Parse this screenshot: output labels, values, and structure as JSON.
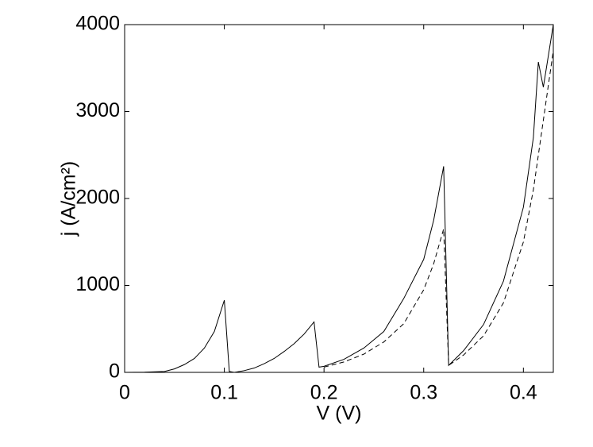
{
  "chart_data": {
    "type": "line",
    "xlabel": "V (V)",
    "ylabel": "j (A/cm²)",
    "xlim": [
      0,
      0.43
    ],
    "ylim": [
      0,
      4000
    ],
    "xticks": [
      0,
      0.1,
      0.2,
      0.3,
      0.4
    ],
    "yticks": [
      0,
      1000,
      2000,
      3000,
      4000
    ],
    "series": [
      {
        "color": "#000000",
        "dash": false,
        "x": [
          0,
          0.02,
          0.04,
          0.05,
          0.06,
          0.07,
          0.08,
          0.09,
          0.1,
          0.105,
          0.11,
          0.12,
          0.13,
          0.14,
          0.15,
          0.16,
          0.17,
          0.18,
          0.19,
          0.195,
          0.2,
          0.22,
          0.24,
          0.26,
          0.28,
          0.3,
          0.31,
          0.32,
          0.325,
          0.34,
          0.36,
          0.38,
          0.4,
          0.41,
          0.415,
          0.42,
          0.43
        ],
        "values": [
          0,
          2,
          10,
          40,
          90,
          160,
          280,
          470,
          830,
          10,
          0,
          20,
          50,
          100,
          160,
          240,
          330,
          440,
          580,
          60,
          70,
          150,
          280,
          470,
          850,
          1300,
          1750,
          2370,
          80,
          250,
          550,
          1050,
          1900,
          2700,
          3570,
          3280,
          4000
        ]
      },
      {
        "color": "#000000",
        "dash": true,
        "x": [
          0.2,
          0.22,
          0.24,
          0.26,
          0.28,
          0.3,
          0.31,
          0.32,
          0.325,
          0.34,
          0.36,
          0.38,
          0.4,
          0.41,
          0.42,
          0.43
        ],
        "values": [
          60,
          120,
          210,
          350,
          560,
          950,
          1250,
          1650,
          80,
          200,
          420,
          800,
          1500,
          2100,
          2900,
          3700
        ]
      }
    ]
  }
}
